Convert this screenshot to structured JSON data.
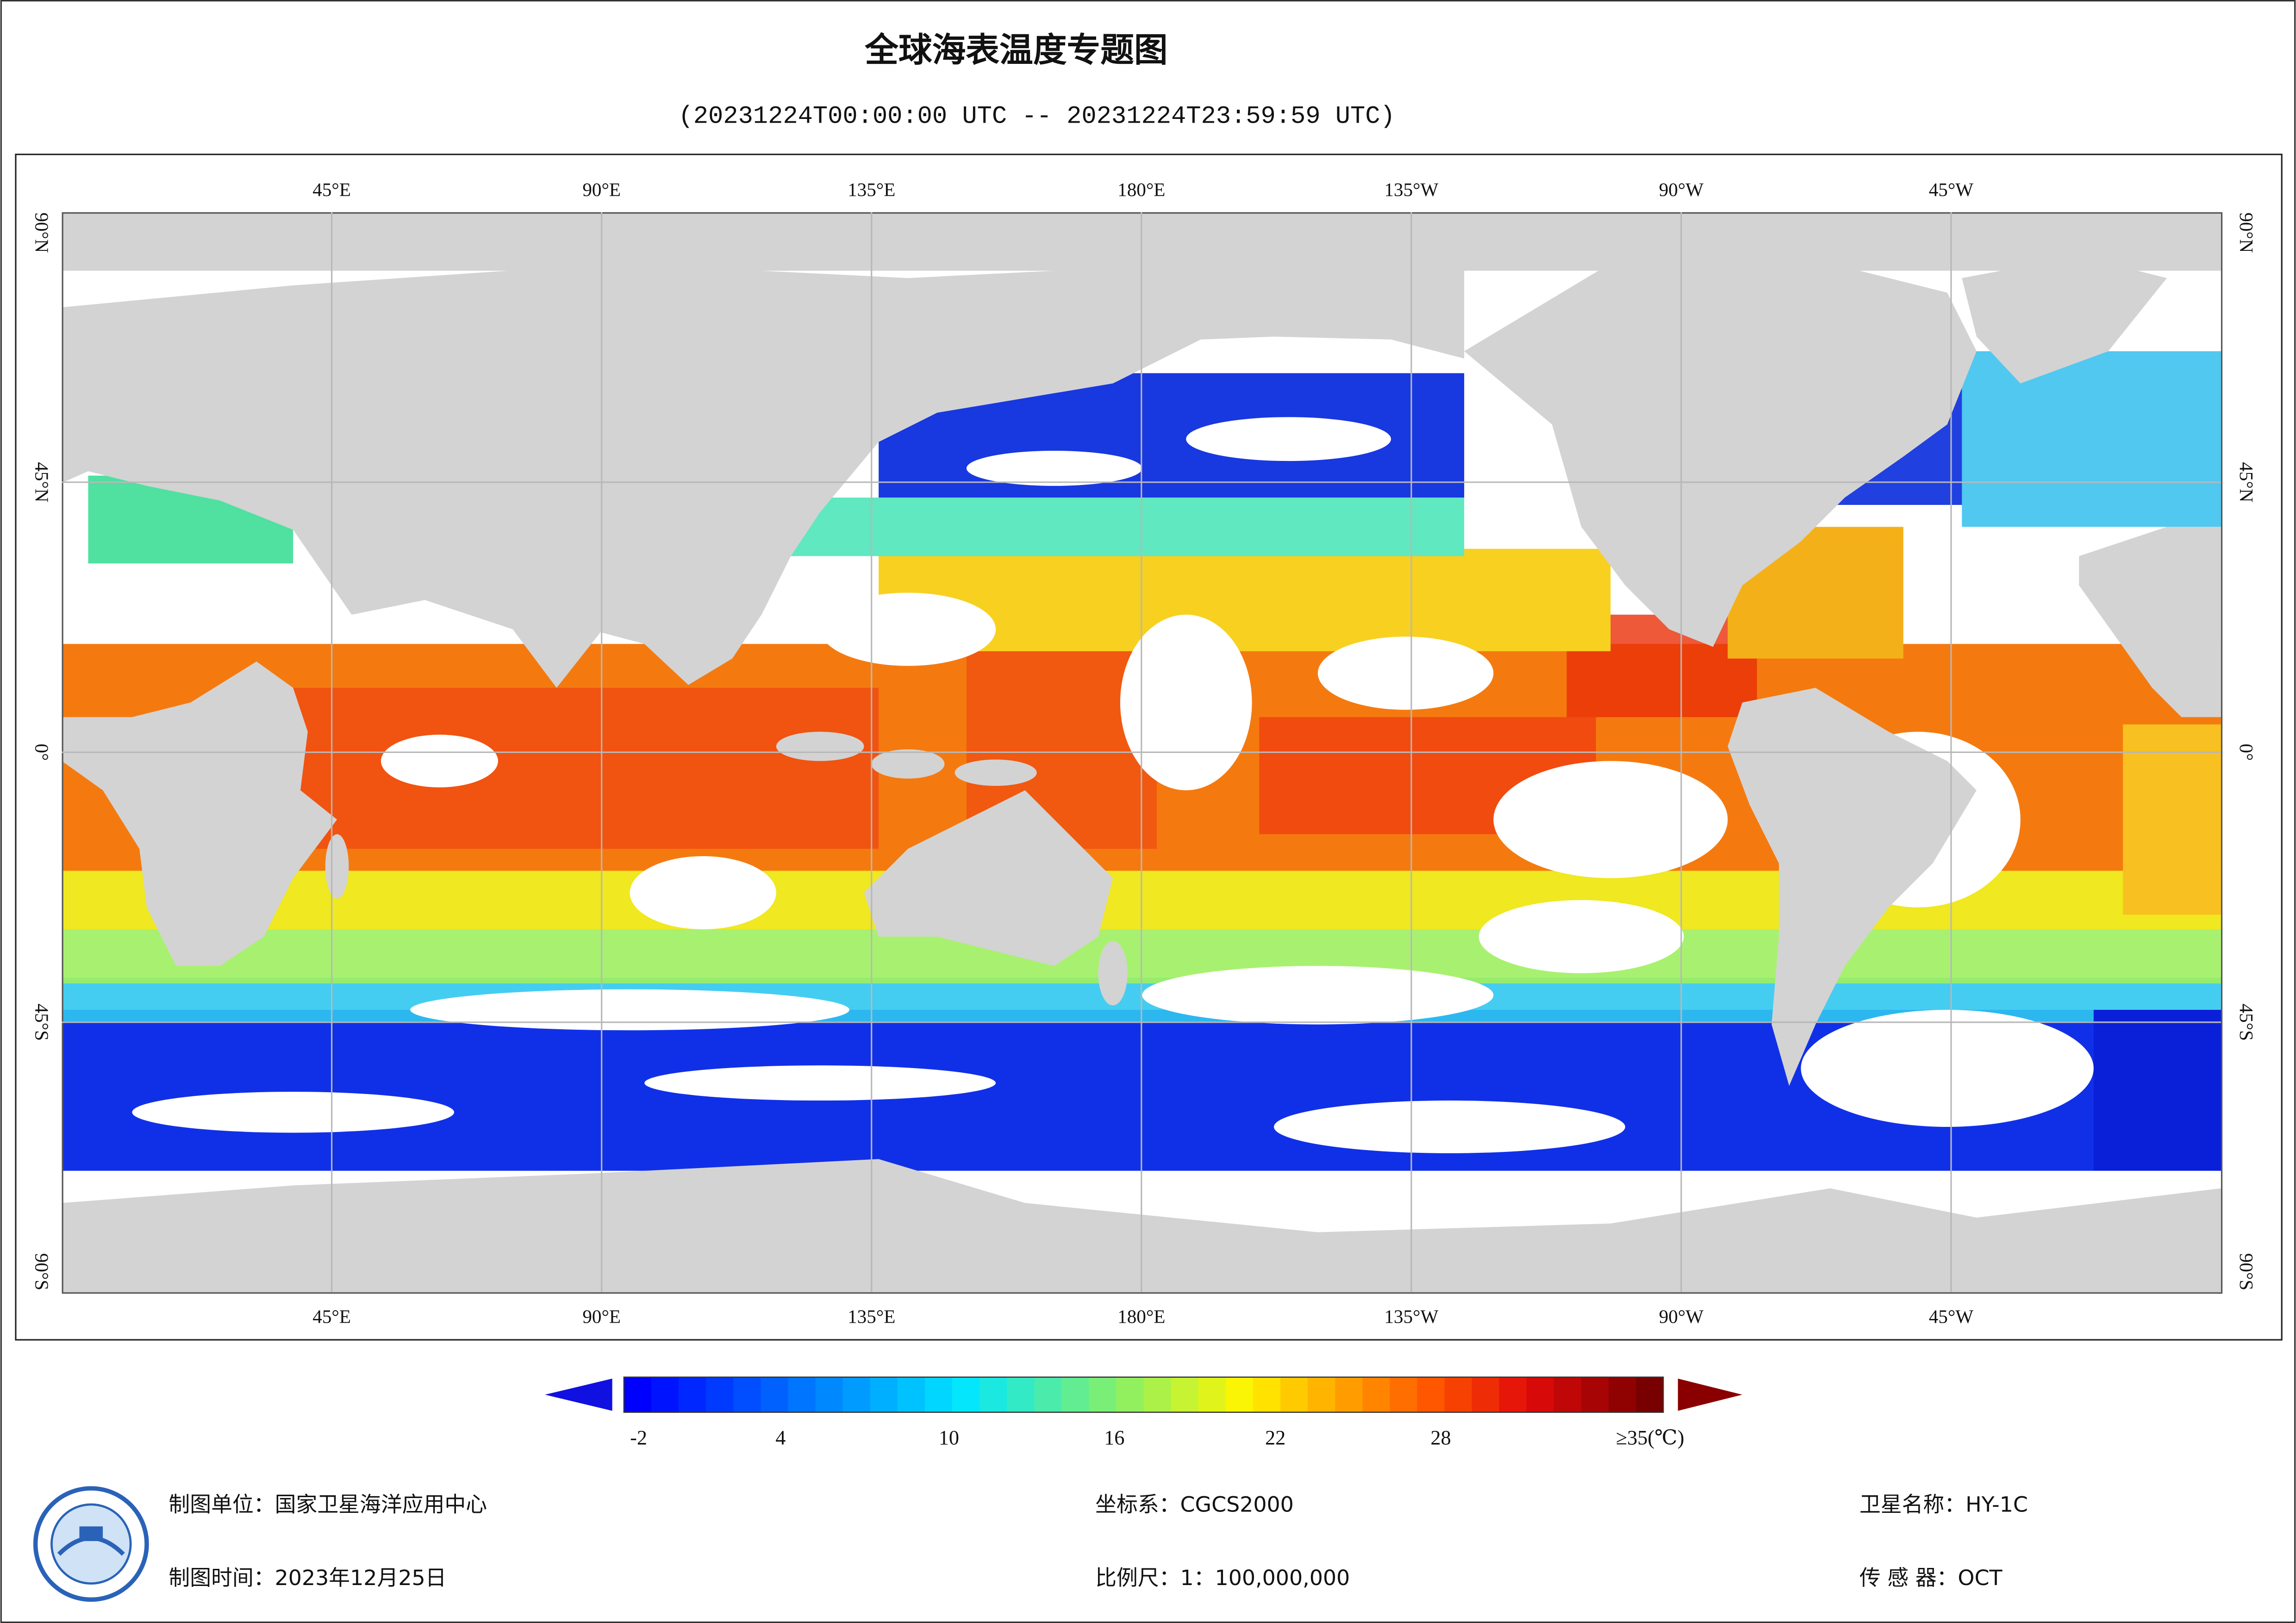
{
  "title": "全球海表温度专题图",
  "subtitle": "(20231224T00:00:00 UTC -- 20231224T23:59:59 UTC)",
  "map": {
    "lon_labels": [
      "45°E",
      "90°E",
      "135°E",
      "180°E",
      "135°W",
      "90°W",
      "45°W"
    ],
    "lat_labels": [
      "90°N",
      "45°N",
      "0°",
      "45°S",
      "90°S"
    ]
  },
  "colorbar": {
    "ticks": [
      "-2",
      "4",
      "10",
      "16",
      "22",
      "28"
    ],
    "max_label": "≥35(℃)"
  },
  "footer": {
    "producer": "制图单位：国家卫星海洋应用中心",
    "date": "制图时间：2023年12月25日",
    "crs": "坐标系：CGCS2000",
    "scale": "比例尺：1：100,000,000",
    "satellite": "卫星名称：HY-1C",
    "sensor": "传 感 器：OCT"
  }
}
